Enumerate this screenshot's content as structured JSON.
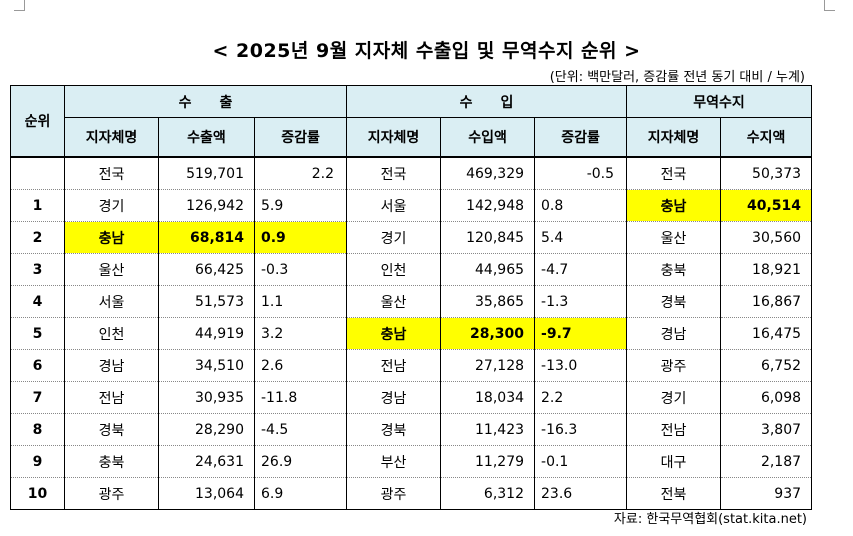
{
  "title": "< 2025년 9월 지자체 수출입 및 무역수지 순위 >",
  "unit_note": "(단위: 백만달러, 증감률 전년 동기 대비 / 누계)",
  "source": "자료: 한국무역협회(stat.kita.net)",
  "headers": {
    "rank": "순위",
    "export_group": "수　　출",
    "import_group": "수　　입",
    "balance_group": "무역수지",
    "region": "지자체명",
    "export_amount": "수출액",
    "rate": "증감률",
    "import_amount": "수입액",
    "balance_amount": "수지액"
  },
  "rows": [
    {
      "rank": "",
      "exp_region": "전국",
      "exp_amount": "519,701",
      "exp_rate": "2.2",
      "imp_region": "전국",
      "imp_amount": "469,329",
      "imp_rate": "-0.5",
      "bal_region": "전국",
      "bal_amount": "50,373"
    },
    {
      "rank": "1",
      "exp_region": "경기",
      "exp_amount": "126,942",
      "exp_rate": "5.9",
      "imp_region": "서울",
      "imp_amount": "142,948",
      "imp_rate": "0.8",
      "bal_region": "충남",
      "bal_amount": "40,514"
    },
    {
      "rank": "2",
      "exp_region": "충남",
      "exp_amount": "68,814",
      "exp_rate": "0.9",
      "imp_region": "경기",
      "imp_amount": "120,845",
      "imp_rate": "5.4",
      "bal_region": "울산",
      "bal_amount": "30,560"
    },
    {
      "rank": "3",
      "exp_region": "울산",
      "exp_amount": "66,425",
      "exp_rate": "-0.3",
      "imp_region": "인천",
      "imp_amount": "44,965",
      "imp_rate": "-4.7",
      "bal_region": "충북",
      "bal_amount": "18,921"
    },
    {
      "rank": "4",
      "exp_region": "서울",
      "exp_amount": "51,573",
      "exp_rate": "1.1",
      "imp_region": "울산",
      "imp_amount": "35,865",
      "imp_rate": "-1.3",
      "bal_region": "경북",
      "bal_amount": "16,867"
    },
    {
      "rank": "5",
      "exp_region": "인천",
      "exp_amount": "44,919",
      "exp_rate": "3.2",
      "imp_region": "충남",
      "imp_amount": "28,300",
      "imp_rate": "-9.7",
      "bal_region": "경남",
      "bal_amount": "16,475"
    },
    {
      "rank": "6",
      "exp_region": "경남",
      "exp_amount": "34,510",
      "exp_rate": "2.6",
      "imp_region": "전남",
      "imp_amount": "27,128",
      "imp_rate": "-13.0",
      "bal_region": "광주",
      "bal_amount": "6,752"
    },
    {
      "rank": "7",
      "exp_region": "전남",
      "exp_amount": "30,935",
      "exp_rate": "-11.8",
      "imp_region": "경남",
      "imp_amount": "18,034",
      "imp_rate": "2.2",
      "bal_region": "경기",
      "bal_amount": "6,098"
    },
    {
      "rank": "8",
      "exp_region": "경북",
      "exp_amount": "28,290",
      "exp_rate": "-4.5",
      "imp_region": "경북",
      "imp_amount": "11,423",
      "imp_rate": "-16.3",
      "bal_region": "전남",
      "bal_amount": "3,807"
    },
    {
      "rank": "9",
      "exp_region": "충북",
      "exp_amount": "24,631",
      "exp_rate": "26.9",
      "imp_region": "부산",
      "imp_amount": "11,279",
      "imp_rate": "-0.1",
      "bal_region": "대구",
      "bal_amount": "2,187"
    },
    {
      "rank": "10",
      "exp_region": "광주",
      "exp_amount": "13,064",
      "exp_rate": "6.9",
      "imp_region": "광주",
      "imp_amount": "6,312",
      "imp_rate": "23.6",
      "bal_region": "전북",
      "bal_amount": "937"
    }
  ],
  "highlight_color": "#ffff00",
  "header_color": "#daeef3"
}
